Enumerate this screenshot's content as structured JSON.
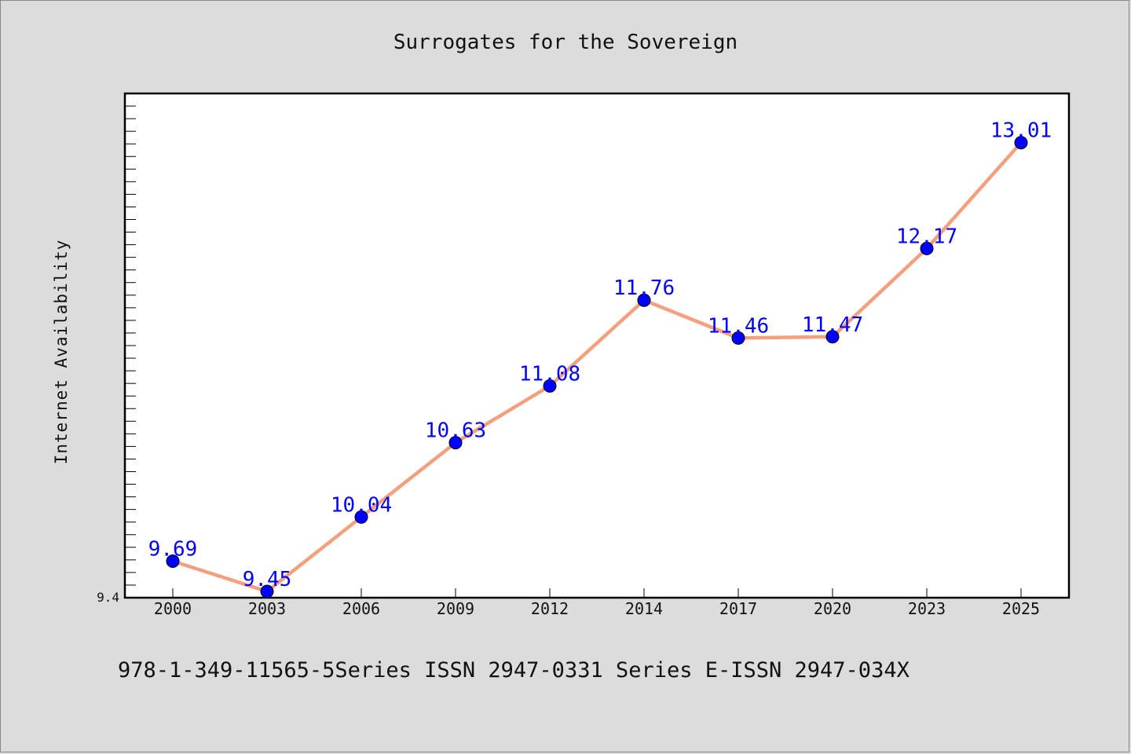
{
  "chart_data": {
    "type": "line",
    "title": "Surrogates for the Sovereign",
    "xlabel": "",
    "ylabel": "Internet Availability",
    "categories": [
      "2000",
      "2003",
      "2006",
      "2009",
      "2012",
      "2014",
      "2017",
      "2020",
      "2023",
      "2025"
    ],
    "series": [
      {
        "values": [
          9.69,
          9.45,
          10.04,
          10.63,
          11.08,
          11.76,
          11.46,
          11.47,
          12.17,
          13.01
        ],
        "labels": [
          "9.69",
          "9.45",
          "10.04",
          "10.63",
          "11.08",
          "11.76",
          "11.46",
          "11.47",
          "12.17",
          "13.01"
        ]
      }
    ],
    "y_tick_label": "9.4",
    "ylim": [
      9.4,
      13.4
    ],
    "grid": false,
    "line_color": "#f4a07e",
    "marker_color": "#0000ff",
    "label_color": "#0000ff"
  },
  "footer": "978-1-349-11565-5Series ISSN 2947-0331 Series E-ISSN 2947-034X"
}
